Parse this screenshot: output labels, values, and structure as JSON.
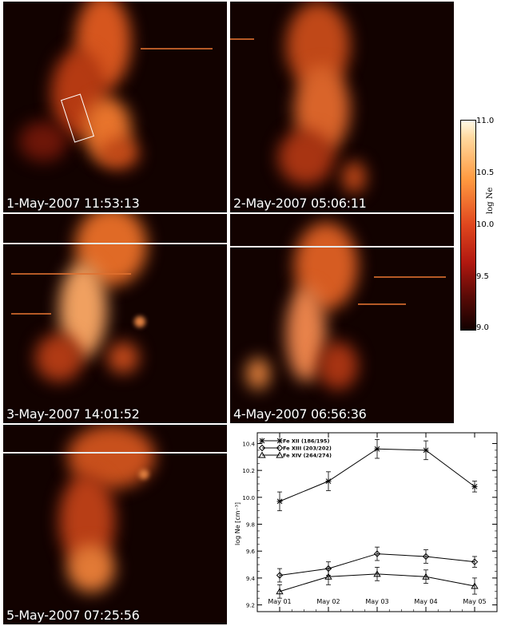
{
  "panels": [
    {
      "timestamp": "1-May-2007 11:53:13"
    },
    {
      "timestamp": "2-May-2007 05:06:11"
    },
    {
      "timestamp": "3-May-2007 14:01:52"
    },
    {
      "timestamp": "4-May-2007 06:56:36"
    },
    {
      "timestamp": "5-May-2007 07:25:56"
    }
  ],
  "colorbar": {
    "label": "log Ne",
    "ticks": [
      "11.0",
      "10.5",
      "10.0",
      "9.5",
      "9.0"
    ],
    "colors": {
      "low": "#120100",
      "mid": "#e0461e",
      "high": "#fffbe8"
    }
  },
  "chart_data": {
    "type": "line",
    "categories": [
      "May 01",
      "May 02",
      "May 03",
      "May 04",
      "May 05"
    ],
    "ylabel": "log Ne [cm⁻³]",
    "ylim": [
      9.15,
      10.48
    ],
    "yticks": [
      "9.2",
      "9.4",
      "9.6",
      "9.8",
      "10.0",
      "10.2",
      "10.4"
    ],
    "legend_position": "top-left",
    "series": [
      {
        "name": "Fe XII (186/195)",
        "marker": "asterisk",
        "values": [
          9.97,
          10.12,
          10.36,
          10.35,
          10.08
        ],
        "errors": [
          0.07,
          0.07,
          0.07,
          0.07,
          0.04
        ]
      },
      {
        "name": "Fe XIII (203/202)",
        "marker": "diamond",
        "values": [
          9.42,
          9.47,
          9.58,
          9.56,
          9.52
        ],
        "errors": [
          0.05,
          0.05,
          0.05,
          0.05,
          0.04
        ]
      },
      {
        "name": "Fe XIV (264/274)",
        "marker": "triangle",
        "values": [
          9.3,
          9.41,
          9.43,
          9.41,
          9.34
        ],
        "errors": [
          0.05,
          0.06,
          0.05,
          0.05,
          0.06
        ]
      }
    ]
  }
}
